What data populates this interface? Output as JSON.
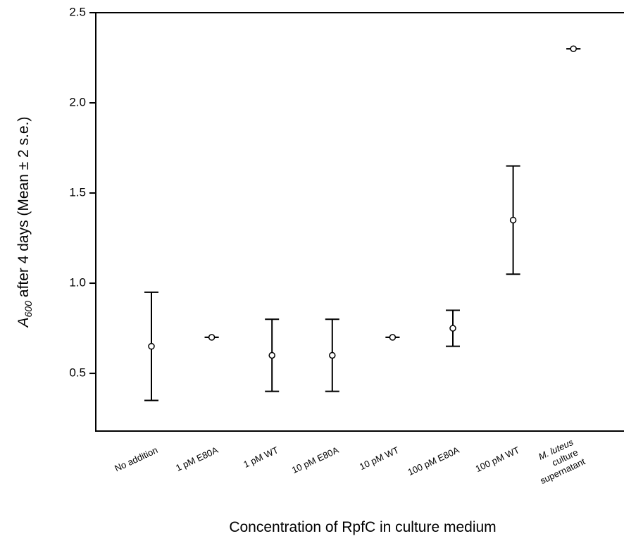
{
  "chart_data": {
    "type": "errorbar",
    "y_label": {
      "symbol": "A",
      "subscript": "600",
      "text": "after 4 days (Mean ± 2 s.e.)"
    },
    "x_label": "Concentration of RpfC in culture medium",
    "categories": [
      "No addition",
      "1 pM E80A",
      "1 pM WT",
      "10 pM E80A",
      "10 pM WT",
      "100 pM E80A",
      "100 pM WT",
      "M. luteus culture supernatant"
    ],
    "values": [
      0.65,
      0.7,
      0.6,
      0.6,
      0.7,
      0.75,
      1.35,
      2.3
    ],
    "errors": [
      0.3,
      0,
      0.2,
      0.2,
      0,
      0.1,
      0.3,
      0
    ],
    "color": "#000000",
    "ylim": [
      0.18,
      2.5
    ],
    "yticks": [
      0.5,
      {
        "value": 1,
        "label": "1.0"
      },
      1.5,
      {
        "value": 2,
        "label": "2.0"
      },
      2.5
    ],
    "grid": false
  }
}
